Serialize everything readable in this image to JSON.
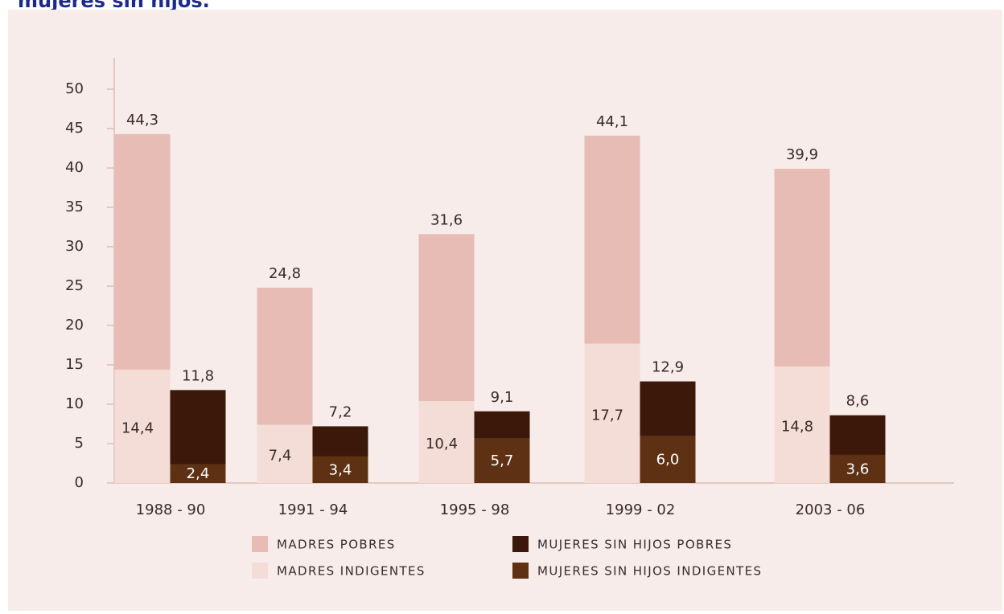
{
  "page": {
    "heading": "mujeres sin hijos."
  },
  "chart_data": {
    "type": "bar",
    "stacked": true,
    "categories": [
      "1988 - 90",
      "1991 - 94",
      "1995 - 98",
      "1999 - 02",
      "2003 - 06"
    ],
    "ylim": [
      0,
      50
    ],
    "yticks": [
      0,
      5,
      10,
      15,
      20,
      25,
      30,
      35,
      40,
      45,
      50
    ],
    "title": "",
    "xlabel": "",
    "ylabel": "",
    "grid": false,
    "legend_position": "bottom",
    "groups": [
      {
        "key": "madres",
        "total_labels": [
          "44,3",
          "24,8",
          "31,6",
          "44,1",
          "39,9"
        ],
        "inner_labels": [
          "14,4",
          "7,4",
          "10,4",
          "17,7",
          "14,8"
        ]
      },
      {
        "key": "sin_hijos",
        "total_labels": [
          "11,8",
          "7,2",
          "9,1",
          "12,9",
          "8,6"
        ],
        "inner_labels": [
          "2,4",
          "3,4",
          "5,7",
          "6,0",
          "3,6"
        ]
      }
    ],
    "series": [
      {
        "name": "MADRES POBRES",
        "group": "madres",
        "values": [
          44.3,
          24.8,
          31.6,
          44.1,
          39.9
        ],
        "color": "#e6bcb5"
      },
      {
        "name": "MADRES INDIGENTES",
        "group": "madres",
        "values": [
          14.4,
          7.4,
          10.4,
          17.7,
          14.8
        ],
        "color": "#f4dcd7"
      },
      {
        "name": "MUJERES SIN HIJOS POBRES",
        "group": "sin_hijos",
        "values": [
          11.8,
          7.2,
          9.1,
          12.9,
          8.6
        ],
        "color": "#3b180a"
      },
      {
        "name": "MUJERES SIN HIJOS INDIGENTES",
        "group": "sin_hijos",
        "values": [
          2.4,
          3.4,
          5.7,
          6.0,
          3.6
        ],
        "color": "#5e3114"
      }
    ],
    "colors": {
      "background": "#f8ecea",
      "axis": "#e7c6c1",
      "text": "#3a2a26",
      "inner_label_light": "#ffffff"
    }
  }
}
